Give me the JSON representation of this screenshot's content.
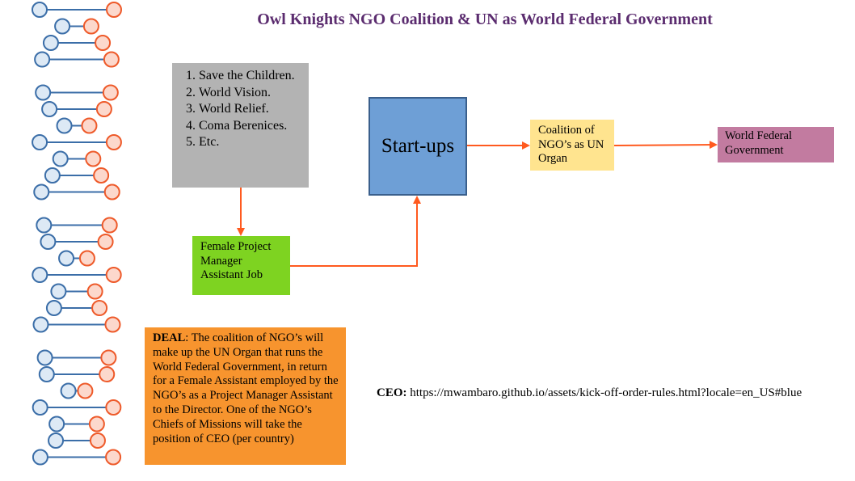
{
  "title": "Owl Knights NGO Coalition & UN as World Federal Government",
  "ngo_list": {
    "items": [
      "Save the Children.",
      "World Vision.",
      "World Relief.",
      "Coma Berenices.",
      "Etc."
    ]
  },
  "pm_job": {
    "label": "Female Project Manager Assistant Job"
  },
  "startups": {
    "label": "Start-ups"
  },
  "coalition": {
    "label": "Coalition of NGO’s as UN Organ"
  },
  "world_federal_government": {
    "label": "World Federal Government"
  },
  "deal": {
    "label": "DEAL",
    "text": ": The coalition of NGO’s will make up the UN Organ that runs the World Federal Government, in return for a Female Assistant employed by the NGO’s as a Project Manager Assistant to the Director. One of the NGO’s Chiefs of Missions will take the position of CEO (per country)"
  },
  "ceo": {
    "label": "CEO:",
    "url": "https://mwambaro.github.io/assets/kick-off-order-rules.html?locale=en_US#blue"
  },
  "colors": {
    "title": "#5b2c6f",
    "arrow": "#ff5a1f",
    "dna_rung": "#3b6ea8",
    "dna_blue": "#dde9f5",
    "dna_blue_stroke": "#3b6ea8",
    "dna_orange": "#fcd8cc",
    "dna_orange_stroke": "#ee5a2a"
  }
}
